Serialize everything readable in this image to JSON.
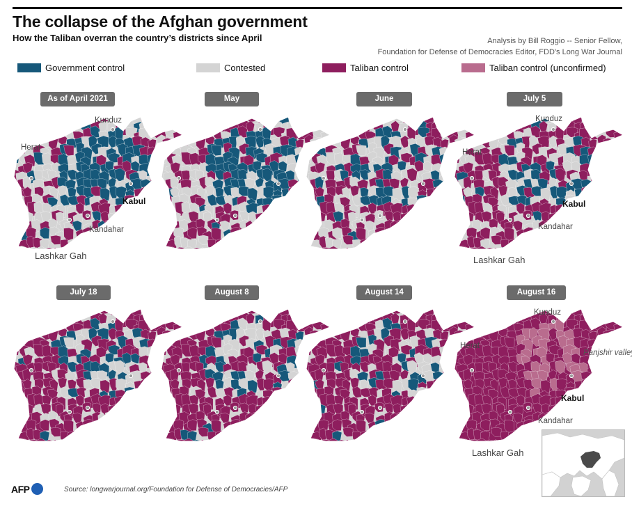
{
  "header": {
    "title": "The collapse of the Afghan government",
    "subtitle": "How the Taliban overran the country’s districts since April",
    "credit_line1": "Analysis by Bill Roggio -- Senior Fellow,",
    "credit_line2": "Foundation for Defense of Democracies Editor, FDD's Long War Journal"
  },
  "legend": [
    {
      "label": "Government control",
      "color": "#16587a"
    },
    {
      "label": "Contested",
      "color": "#d4d4d4"
    },
    {
      "label": "Taliban control",
      "color": "#8e1e5e"
    },
    {
      "label": "Taliban control (unconfirmed)",
      "color": "#b96c8e"
    }
  ],
  "panels": [
    {
      "label": "As of April 2021",
      "government_share": 0.28,
      "contested_share": 0.4,
      "taliban_share": 0.32
    },
    {
      "label": "May",
      "government_share": 0.24,
      "contested_share": 0.4,
      "taliban_share": 0.36
    },
    {
      "label": "June",
      "government_share": 0.18,
      "contested_share": 0.37,
      "taliban_share": 0.45
    },
    {
      "label": "July 5",
      "government_share": 0.14,
      "contested_share": 0.3,
      "taliban_share": 0.56
    },
    {
      "label": "July 18",
      "government_share": 0.12,
      "contested_share": 0.22,
      "taliban_share": 0.66
    },
    {
      "label": "August 8",
      "government_share": 0.11,
      "contested_share": 0.19,
      "taliban_share": 0.7
    },
    {
      "label": "August 14",
      "government_share": 0.09,
      "contested_share": 0.05,
      "taliban_share": 0.86
    },
    {
      "label": "August 16",
      "government_share": 0.0,
      "contested_share": 0.0,
      "taliban_share": 0.8,
      "unconfirmed_share": 0.2
    }
  ],
  "cities": {
    "kunduz": "Kunduz",
    "herat": "Herat",
    "kabul": "Kabul",
    "kandahar": "Kandahar",
    "lashkar_gah": "Lashkar Gah",
    "panjshir": "Panjshir valley"
  },
  "footer": {
    "logo": "AFP",
    "source": "Source: longwarjournal.org/Foundation for Defense of Democracies/AFP"
  }
}
